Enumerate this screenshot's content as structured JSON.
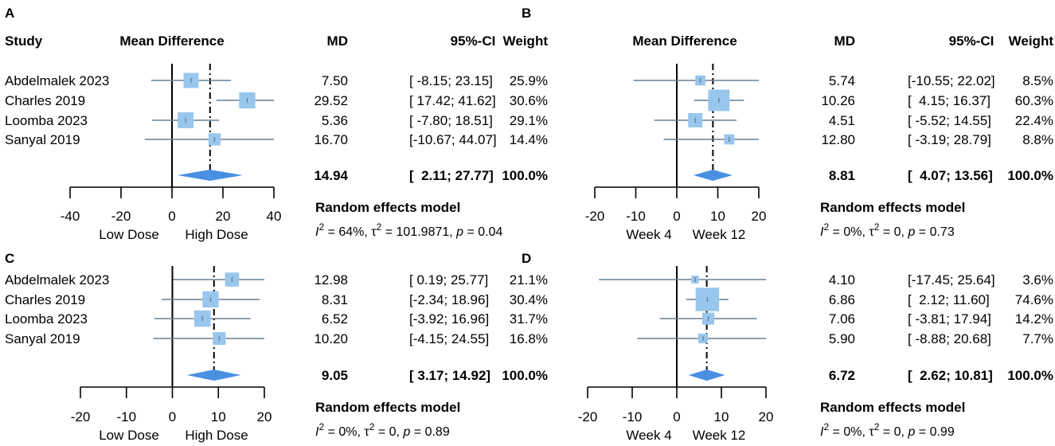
{
  "chart_data": [
    {
      "panel": "A",
      "type": "forest",
      "title": "Mean Difference",
      "show_study_header": true,
      "study_header": "Study",
      "columns": [
        "MD",
        "95%-CI",
        "Weight"
      ],
      "studies": [
        {
          "name": "Abdelmalek 2023",
          "md": 7.5,
          "lo": -8.15,
          "hi": 23.15,
          "md_text": "7.50",
          "ci_text": "[ -8.15; 23.15]",
          "weight_text": "25.9%",
          "weight": 25.9
        },
        {
          "name": "Charles 2019",
          "md": 29.52,
          "lo": 17.42,
          "hi": 41.62,
          "md_text": "29.52",
          "ci_text": "[ 17.42; 41.62]",
          "weight_text": "30.6%",
          "weight": 30.6
        },
        {
          "name": "Loomba 2023",
          "md": 5.36,
          "lo": -7.8,
          "hi": 18.51,
          "md_text": "5.36",
          "ci_text": "[ -7.80; 18.51]",
          "weight_text": "29.1%",
          "weight": 29.1
        },
        {
          "name": "Sanyal 2019",
          "md": 16.7,
          "lo": -10.67,
          "hi": 44.07,
          "md_text": "16.70",
          "ci_text": "[-10.67; 44.07]",
          "weight_text": "14.4%",
          "weight": 14.4
        }
      ],
      "pooled": {
        "md": 14.94,
        "lo": 2.11,
        "hi": 27.77,
        "md_text": "14.94",
        "ci_text": "[  2.11; 27.77]",
        "weight_text": "100.0%"
      },
      "model_label": "Random effects model",
      "heterogeneity": {
        "i2": "64%",
        "tau2": "101.9871",
        "p": "0.04"
      },
      "xlim": [
        -40,
        40
      ],
      "ticks": [
        -40,
        -20,
        0,
        20,
        40
      ],
      "tick_labels": [
        "-40",
        "-20",
        "0",
        "20",
        "40"
      ],
      "xlabel_left": "Low Dose",
      "xlabel_right": "High Dose"
    },
    {
      "panel": "B",
      "type": "forest",
      "title": "Mean Difference",
      "show_study_header": false,
      "columns": [
        "MD",
        "95%-CI",
        "Weight"
      ],
      "studies": [
        {
          "name": "Abdelmalek 2023",
          "md": 5.74,
          "lo": -10.55,
          "hi": 22.02,
          "md_text": "5.74",
          "ci_text": "[-10.55; 22.02]",
          "weight_text": "8.5%",
          "weight": 8.5
        },
        {
          "name": "Charles 2019",
          "md": 10.26,
          "lo": 4.15,
          "hi": 16.37,
          "md_text": "10.26",
          "ci_text": "[  4.15; 16.37]",
          "weight_text": "60.3%",
          "weight": 60.3
        },
        {
          "name": "Loomba 2023",
          "md": 4.51,
          "lo": -5.52,
          "hi": 14.55,
          "md_text": "4.51",
          "ci_text": "[ -5.52; 14.55]",
          "weight_text": "22.4%",
          "weight": 22.4
        },
        {
          "name": "Sanyal 2019",
          "md": 12.8,
          "lo": -3.19,
          "hi": 28.79,
          "md_text": "12.80",
          "ci_text": "[ -3.19; 28.79]",
          "weight_text": "8.8%",
          "weight": 8.8
        }
      ],
      "pooled": {
        "md": 8.81,
        "lo": 4.07,
        "hi": 13.56,
        "md_text": "8.81",
        "ci_text": "[  4.07; 13.56]",
        "weight_text": "100.0%"
      },
      "model_label": "Random effects model",
      "heterogeneity": {
        "i2": "0%",
        "tau2": "0",
        "p": "0.73"
      },
      "xlim": [
        -20,
        20
      ],
      "ticks": [
        -20,
        -10,
        0,
        10,
        20
      ],
      "tick_labels": [
        "-20",
        "-10",
        "0",
        "10",
        "20"
      ],
      "xlabel_left": "Week 4",
      "xlabel_right": "Week 12"
    },
    {
      "panel": "C",
      "type": "forest",
      "title": "",
      "show_study_header": false,
      "columns": [],
      "studies": [
        {
          "name": "Abdelmalek 2023",
          "md": 12.98,
          "lo": 0.19,
          "hi": 25.77,
          "md_text": "12.98",
          "ci_text": "[ 0.19; 25.77]",
          "weight_text": "21.1%",
          "weight": 21.1
        },
        {
          "name": "Charles 2019",
          "md": 8.31,
          "lo": -2.34,
          "hi": 18.96,
          "md_text": "8.31",
          "ci_text": "[-2.34; 18.96]",
          "weight_text": "30.4%",
          "weight": 30.4
        },
        {
          "name": "Loomba 2023",
          "md": 6.52,
          "lo": -3.92,
          "hi": 16.96,
          "md_text": "6.52",
          "ci_text": "[-3.92; 16.96]",
          "weight_text": "31.7%",
          "weight": 31.7
        },
        {
          "name": "Sanyal 2019",
          "md": 10.2,
          "lo": -4.15,
          "hi": 24.55,
          "md_text": "10.20",
          "ci_text": "[-4.15; 24.55]",
          "weight_text": "16.8%",
          "weight": 16.8
        }
      ],
      "pooled": {
        "md": 9.05,
        "lo": 3.17,
        "hi": 14.92,
        "md_text": "9.05",
        "ci_text": "[ 3.17; 14.92]",
        "weight_text": "100.0%"
      },
      "model_label": "Random effects model",
      "heterogeneity": {
        "i2": "0%",
        "tau2": "0",
        "p": "0.89"
      },
      "xlim": [
        -20,
        20
      ],
      "ticks": [
        -20,
        -10,
        0,
        10,
        20
      ],
      "tick_labels": [
        "-20",
        "-10",
        "0",
        "10",
        "20"
      ],
      "xlabel_left": "Low Dose",
      "xlabel_right": "High Dose"
    },
    {
      "panel": "D",
      "type": "forest",
      "title": "",
      "show_study_header": false,
      "columns": [],
      "studies": [
        {
          "name": "Abdelmalek 2023",
          "md": 4.1,
          "lo": -17.45,
          "hi": 25.64,
          "md_text": "4.10",
          "ci_text": "[-17.45; 25.64]",
          "weight_text": "3.6%",
          "weight": 3.6
        },
        {
          "name": "Charles 2019",
          "md": 6.86,
          "lo": 2.12,
          "hi": 11.6,
          "md_text": "6.86",
          "ci_text": "[  2.12; 11.60]",
          "weight_text": "74.6%",
          "weight": 74.6
        },
        {
          "name": "Loomba 2023",
          "md": 7.06,
          "lo": -3.81,
          "hi": 17.94,
          "md_text": "7.06",
          "ci_text": "[ -3.81; 17.94]",
          "weight_text": "14.2%",
          "weight": 14.2
        },
        {
          "name": "Sanyal 2019",
          "md": 5.9,
          "lo": -8.88,
          "hi": 20.68,
          "md_text": "5.90",
          "ci_text": "[ -8.88; 20.68]",
          "weight_text": "7.7%",
          "weight": 7.7
        }
      ],
      "pooled": {
        "md": 6.72,
        "lo": 2.62,
        "hi": 10.81,
        "md_text": "6.72",
        "ci_text": "[  2.62; 10.81]",
        "weight_text": "100.0%"
      },
      "model_label": "Random effects model",
      "heterogeneity": {
        "i2": "0%",
        "tau2": "0",
        "p": "0.99"
      },
      "xlim": [
        -20,
        20
      ],
      "ticks": [
        -20,
        -10,
        0,
        10,
        20
      ],
      "tick_labels": [
        "-20",
        "-10",
        "0",
        "10",
        "20"
      ],
      "xlabel_left": "Week 4",
      "xlabel_right": "Week 12"
    }
  ],
  "colors": {
    "ci_line": "#6b7f95",
    "square": "#99c6ec",
    "diamond": "#4a90e2",
    "axis": "#000000",
    "dashed": "#000000"
  }
}
